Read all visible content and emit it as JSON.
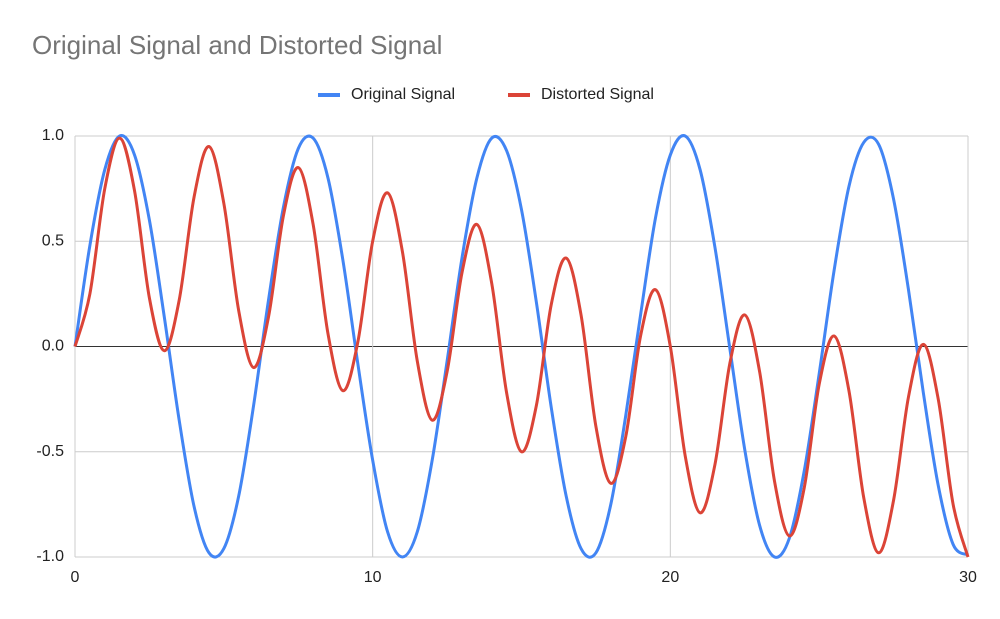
{
  "chart_data": {
    "type": "line",
    "title": "Original Signal and Distorted Signal",
    "legend": "top",
    "grid": true,
    "x": [
      0,
      0.5,
      1,
      1.5,
      2,
      2.5,
      3,
      3.5,
      4,
      4.5,
      5,
      5.5,
      6,
      6.5,
      7,
      7.5,
      8,
      8.5,
      9,
      9.5,
      10,
      10.5,
      11,
      11.5,
      12,
      12.5,
      13,
      13.5,
      14,
      14.5,
      15,
      15.5,
      16,
      16.5,
      17,
      17.5,
      18,
      18.5,
      19,
      19.5,
      20,
      20.5,
      21,
      21.5,
      22,
      22.5,
      23,
      23.5,
      24,
      24.5,
      25,
      25.5,
      26,
      26.5,
      27,
      27.5,
      28,
      28.5,
      29,
      29.5,
      30
    ],
    "series": [
      {
        "name": "Original Signal",
        "color": "#4285f4",
        "values": [
          0,
          0.48,
          0.84,
          1.0,
          0.91,
          0.6,
          0.14,
          -0.35,
          -0.76,
          -0.98,
          -0.96,
          -0.71,
          -0.28,
          0.22,
          0.66,
          0.94,
          0.99,
          0.8,
          0.41,
          -0.08,
          -0.54,
          -0.88,
          -1.0,
          -0.88,
          -0.54,
          -0.07,
          0.42,
          0.8,
          0.99,
          0.93,
          0.65,
          0.21,
          -0.29,
          -0.71,
          -0.96,
          -0.98,
          -0.75,
          -0.33,
          0.15,
          0.61,
          0.91,
          1.0,
          0.84,
          0.47,
          -0.01,
          -0.49,
          -0.85,
          -1.0,
          -0.91,
          -0.59,
          -0.13,
          0.36,
          0.76,
          0.97,
          0.96,
          0.7,
          0.27,
          -0.22,
          -0.66,
          -0.94,
          -0.99
        ]
      },
      {
        "name": "Distorted Signal",
        "color": "#db4437",
        "values": [
          0,
          0.25,
          0.75,
          0.99,
          0.74,
          0.23,
          -0.02,
          0.22,
          0.71,
          0.95,
          0.68,
          0.17,
          -0.1,
          0.14,
          0.62,
          0.85,
          0.58,
          0.06,
          -0.21,
          0.02,
          0.5,
          0.73,
          0.45,
          -0.07,
          -0.35,
          -0.12,
          0.35,
          0.58,
          0.3,
          -0.22,
          -0.5,
          -0.28,
          0.2,
          0.42,
          0.15,
          -0.38,
          -0.65,
          -0.43,
          0.05,
          0.27,
          0,
          -0.52,
          -0.79,
          -0.56,
          -0.08,
          0.15,
          -0.12,
          -0.64,
          -0.9,
          -0.67,
          -0.18,
          0.05,
          -0.21,
          -0.72,
          -0.98,
          -0.73,
          -0.24,
          0.01,
          -0.25,
          -0.75,
          -1.0
        ]
      }
    ],
    "xlim": [
      0,
      30
    ],
    "xticks": [
      0,
      10,
      20,
      30
    ],
    "ylim": [
      -1,
      1
    ],
    "yticks": [
      {
        "value": -1,
        "label": "-1.0"
      },
      {
        "value": -0.5,
        "label": "-0.5"
      },
      {
        "value": 0,
        "label": "0.0"
      },
      {
        "value": 0.5,
        "label": "0.5"
      },
      {
        "value": 1,
        "label": "1.0"
      }
    ]
  }
}
